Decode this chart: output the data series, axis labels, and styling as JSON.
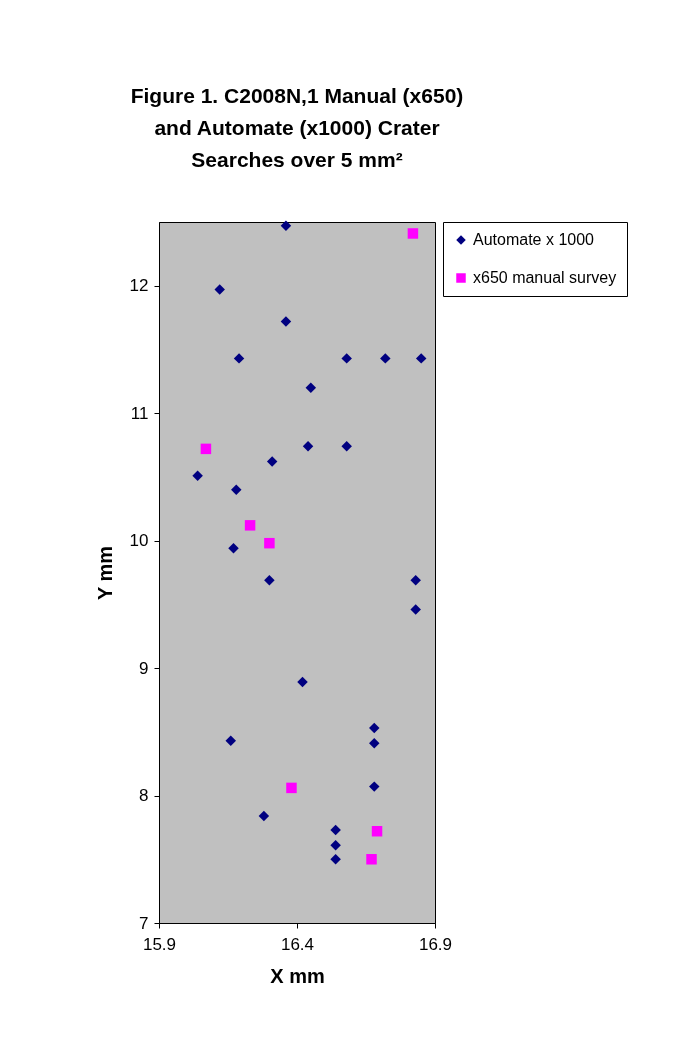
{
  "chart_data": {
    "type": "scatter",
    "title": "Figure 1.  C2008N,1 Manual (x650) and Automate (x1000) Crater Searches over 5 mm²",
    "xlabel": "X mm",
    "ylabel": "Y mm",
    "xlim": [
      15.9,
      16.9
    ],
    "xticks": [
      15.9,
      16.4,
      16.9
    ],
    "ylim": [
      7,
      12.5
    ],
    "yticks": [
      7,
      8,
      9,
      10,
      11,
      12
    ],
    "grid": false,
    "legend": "right",
    "series": [
      {
        "name": "Automate x 1000",
        "color": "#000080",
        "marker": "diamond",
        "x": [
          16.36,
          16.12,
          16.36,
          16.19,
          16.58,
          16.72,
          16.85,
          16.45,
          16.44,
          16.58,
          16.31,
          16.04,
          16.18,
          16.17,
          16.3,
          16.83,
          16.83,
          16.42,
          16.16,
          16.68,
          16.68,
          16.68,
          16.28,
          16.54,
          16.54,
          16.54
        ],
        "values": [
          12.47,
          11.97,
          11.72,
          11.43,
          11.43,
          11.43,
          11.43,
          11.2,
          10.74,
          10.74,
          10.62,
          10.51,
          10.4,
          9.94,
          9.69,
          9.69,
          9.46,
          8.89,
          8.43,
          8.53,
          8.41,
          8.07,
          7.84,
          7.73,
          7.61,
          7.5
        ]
      },
      {
        "name": "x650 manual survey",
        "color": "#ff00ff",
        "marker": "square",
        "x": [
          16.82,
          16.07,
          16.23,
          16.3,
          16.38,
          16.69,
          16.67
        ],
        "values": [
          12.41,
          10.72,
          10.12,
          9.98,
          8.06,
          7.72,
          7.5
        ]
      }
    ]
  }
}
